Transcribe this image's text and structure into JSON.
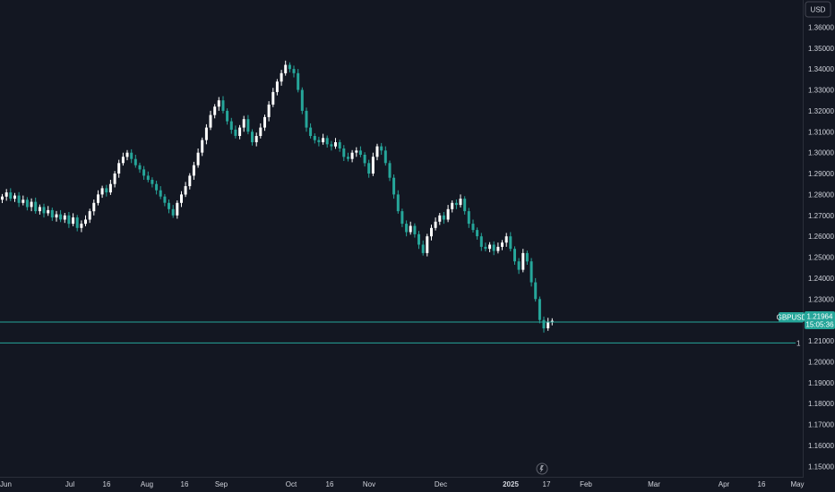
{
  "currency_button": "USD",
  "colors": {
    "background": "#131722",
    "up": "#ffffff",
    "down": "#26a69a",
    "line": "#26a69a",
    "text": "#d1d4dc",
    "axis_border": "#2a2e39"
  },
  "scroll_icon": "arrow-circle-icon",
  "chart_data": {
    "type": "candlestick",
    "symbol": "GBPUSD",
    "last_price": "1.21964",
    "countdown": "15:05:36",
    "level_line": {
      "label": "1",
      "value": 1.209
    },
    "ylim": [
      1.145,
      1.373
    ],
    "yticks": [
      1.36,
      1.35,
      1.34,
      1.33,
      1.32,
      1.31,
      1.3,
      1.29,
      1.28,
      1.27,
      1.26,
      1.25,
      1.24,
      1.23,
      1.21,
      1.2,
      1.19,
      1.18,
      1.17,
      1.16,
      1.15
    ],
    "ytick_labels": [
      "1.36000",
      "1.35000",
      "1.34000",
      "1.33000",
      "1.32000",
      "1.31000",
      "1.30000",
      "1.29000",
      "1.28000",
      "1.27000",
      "1.26000",
      "1.25000",
      "1.24000",
      "1.23000",
      "1.21000",
      "1.20000",
      "1.19000",
      "1.18000",
      "1.17000",
      "1.16000",
      "1.15000"
    ],
    "xticks": [
      {
        "label": "Jun",
        "bold": false
      },
      {
        "label": "Jul",
        "bold": false
      },
      {
        "label": "16",
        "bold": false
      },
      {
        "label": "Aug",
        "bold": false
      },
      {
        "label": "16",
        "bold": false
      },
      {
        "label": "Sep",
        "bold": false
      },
      {
        "label": "Oct",
        "bold": false
      },
      {
        "label": "16",
        "bold": false
      },
      {
        "label": "Nov",
        "bold": false
      },
      {
        "label": "Dec",
        "bold": false
      },
      {
        "label": "2025",
        "bold": true
      },
      {
        "label": "17",
        "bold": false
      },
      {
        "label": "Feb",
        "bold": false
      },
      {
        "label": "Mar",
        "bold": false
      },
      {
        "label": "Apr",
        "bold": false
      },
      {
        "label": "16",
        "bold": false
      },
      {
        "label": "May",
        "bold": false
      }
    ],
    "close_series": [
      1.279,
      1.281,
      1.278,
      1.2795,
      1.276,
      1.2775,
      1.274,
      1.2765,
      1.272,
      1.274,
      1.271,
      1.2725,
      1.269,
      1.2705,
      1.268,
      1.27,
      1.266,
      1.269,
      1.264,
      1.266,
      1.268,
      1.272,
      1.276,
      1.28,
      1.283,
      1.281,
      1.285,
      1.29,
      1.295,
      1.298,
      1.3,
      1.297,
      1.294,
      1.292,
      1.289,
      1.287,
      1.285,
      1.282,
      1.279,
      1.276,
      1.273,
      1.27,
      1.276,
      1.28,
      1.284,
      1.289,
      1.294,
      1.3,
      1.306,
      1.312,
      1.318,
      1.322,
      1.325,
      1.32,
      1.315,
      1.311,
      1.308,
      1.312,
      1.316,
      1.31,
      1.305,
      1.308,
      1.312,
      1.317,
      1.323,
      1.329,
      1.334,
      1.338,
      1.342,
      1.34,
      1.338,
      1.33,
      1.32,
      1.312,
      1.308,
      1.306,
      1.305,
      1.307,
      1.304,
      1.303,
      1.305,
      1.302,
      1.298,
      1.297,
      1.3,
      1.301,
      1.299,
      1.295,
      1.29,
      1.298,
      1.303,
      1.301,
      1.295,
      1.288,
      1.28,
      1.272,
      1.266,
      1.262,
      1.265,
      1.261,
      1.256,
      1.252,
      1.26,
      1.264,
      1.267,
      1.27,
      1.268,
      1.273,
      1.276,
      1.275,
      1.278,
      1.272,
      1.266,
      1.263,
      1.26,
      1.255,
      1.254,
      1.256,
      1.253,
      1.255,
      1.257,
      1.26,
      1.254,
      1.248,
      1.244,
      1.252,
      1.248,
      1.238,
      1.23,
      1.22,
      1.216,
      1.219,
      1.2196
    ]
  }
}
